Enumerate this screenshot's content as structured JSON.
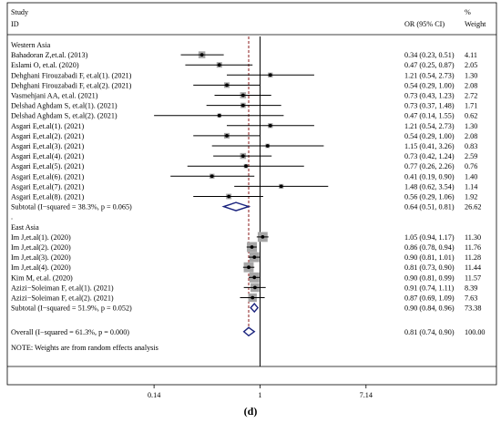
{
  "chart_data": {
    "type": "forest",
    "headers": {
      "study_line1": "Study",
      "study_line2": "ID",
      "or_label": "OR (95% CI)",
      "weight_line1": "%",
      "weight_line2": "Weight"
    },
    "x_scale": "log",
    "xlim": [
      0.12,
      8.2
    ],
    "ticks": [
      {
        "value": 0.14,
        "label": "0.14"
      },
      {
        "value": 1,
        "label": "1"
      },
      {
        "value": 7.14,
        "label": "7.14"
      }
    ],
    "overall_reference": 0.81,
    "groups": [
      {
        "name": "Western Asia",
        "studies": [
          {
            "name": "Bahadoran Z,et.al. (2013)",
            "or": 0.34,
            "lo": 0.23,
            "hi": 0.51,
            "or_text": "0.34 (0.23, 0.51)",
            "weight": "4.11",
            "w": 4.11
          },
          {
            "name": "Eslami O, et.al. (2020)",
            "or": 0.47,
            "lo": 0.25,
            "hi": 0.87,
            "or_text": "0.47 (0.25, 0.87)",
            "weight": "2.05",
            "w": 2.05
          },
          {
            "name": "Dehghani Firouzabadi F, et.al(1). (2021)",
            "or": 1.21,
            "lo": 0.54,
            "hi": 2.73,
            "or_text": "1.21 (0.54, 2.73)",
            "weight": "1.30",
            "w": 1.3
          },
          {
            "name": "Dehghani Firouzabadi F, et.al(2). (2021)",
            "or": 0.54,
            "lo": 0.29,
            "hi": 1.0,
            "or_text": "0.54 (0.29, 1.00)",
            "weight": "2.08",
            "w": 2.08
          },
          {
            "name": "Vasmehjani AA, et.al. (2021)",
            "or": 0.73,
            "lo": 0.43,
            "hi": 1.23,
            "or_text": "0.73 (0.43, 1.23)",
            "weight": "2.72",
            "w": 2.72
          },
          {
            "name": "Delshad Aghdam S, et.al(1). (2021)",
            "or": 0.73,
            "lo": 0.37,
            "hi": 1.48,
            "or_text": "0.73 (0.37, 1.48)",
            "weight": "1.71",
            "w": 1.71
          },
          {
            "name": "Delshad Aghdam S, et.al(2). (2021)",
            "or": 0.47,
            "lo": 0.14,
            "hi": 1.55,
            "or_text": "0.47 (0.14, 1.55)",
            "weight": "0.62",
            "w": 0.62
          },
          {
            "name": "Asgari E,et.al(1). (2021)",
            "or": 1.21,
            "lo": 0.54,
            "hi": 2.73,
            "or_text": "1.21 (0.54, 2.73)",
            "weight": "1.30",
            "w": 1.3
          },
          {
            "name": "Asgari E,et.al(2). (2021)",
            "or": 0.54,
            "lo": 0.29,
            "hi": 1.0,
            "or_text": "0.54 (0.29, 1.00)",
            "weight": "2.08",
            "w": 2.08
          },
          {
            "name": "Asgari E,et.al(3). (2021)",
            "or": 1.15,
            "lo": 0.41,
            "hi": 3.26,
            "or_text": "1.15 (0.41, 3.26)",
            "weight": "0.83",
            "w": 0.83
          },
          {
            "name": "Asgari E,et.al(4). (2021)",
            "or": 0.73,
            "lo": 0.42,
            "hi": 1.24,
            "or_text": "0.73 (0.42, 1.24)",
            "weight": "2.59",
            "w": 2.59
          },
          {
            "name": "Asgari E,et.al(5). (2021)",
            "or": 0.77,
            "lo": 0.26,
            "hi": 2.26,
            "or_text": "0.77 (0.26, 2.26)",
            "weight": "0.76",
            "w": 0.76
          },
          {
            "name": "Asgari E,et.al(6). (2021)",
            "or": 0.41,
            "lo": 0.19,
            "hi": 0.9,
            "or_text": "0.41 (0.19, 0.90)",
            "weight": "1.40",
            "w": 1.4
          },
          {
            "name": "Asgari E,et.al(7). (2021)",
            "or": 1.48,
            "lo": 0.62,
            "hi": 3.54,
            "or_text": "1.48 (0.62, 3.54)",
            "weight": "1.14",
            "w": 1.14
          },
          {
            "name": "Asgari E,et.al(8). (2021)",
            "or": 0.56,
            "lo": 0.29,
            "hi": 1.06,
            "or_text": "0.56 (0.29, 1.06)",
            "weight": "1.92",
            "w": 1.92
          }
        ],
        "subtotal": {
          "label": "Subtotal  (I−squared = 38.3%, p = 0.065)",
          "or": 0.64,
          "lo": 0.51,
          "hi": 0.81,
          "or_text": "0.64 (0.51, 0.81)",
          "weight": "26.62"
        }
      },
      {
        "name": "East Asia",
        "studies": [
          {
            "name": "Im J,et.al(1). (2020)",
            "or": 1.05,
            "lo": 0.94,
            "hi": 1.17,
            "or_text": "1.05 (0.94, 1.17)",
            "weight": "11.30",
            "w": 11.3
          },
          {
            "name": "Im J,et.al(2). (2020)",
            "or": 0.86,
            "lo": 0.78,
            "hi": 0.94,
            "or_text": "0.86 (0.78, 0.94)",
            "weight": "11.76",
            "w": 11.76
          },
          {
            "name": "Im J,et.al(3). (2020)",
            "or": 0.9,
            "lo": 0.81,
            "hi": 1.01,
            "or_text": "0.90 (0.81, 1.01)",
            "weight": "11.28",
            "w": 11.28
          },
          {
            "name": "Im J,et.al(4). (2020)",
            "or": 0.81,
            "lo": 0.73,
            "hi": 0.9,
            "or_text": "0.81 (0.73, 0.90)",
            "weight": "11.44",
            "w": 11.44
          },
          {
            "name": "Kim M, et.al. (2020)",
            "or": 0.9,
            "lo": 0.81,
            "hi": 0.99,
            "or_text": "0.90 (0.81, 0.99)",
            "weight": "11.57",
            "w": 11.57
          },
          {
            "name": "Azizi−Soleiman F, et.al(1). (2021)",
            "or": 0.91,
            "lo": 0.74,
            "hi": 1.11,
            "or_text": "0.91 (0.74, 1.11)",
            "weight": "8.39",
            "w": 8.39
          },
          {
            "name": "Azizi−Soleiman F, et.al(2). (2021)",
            "or": 0.87,
            "lo": 0.69,
            "hi": 1.09,
            "or_text": "0.87 (0.69, 1.09)",
            "weight": "7.63",
            "w": 7.63
          }
        ],
        "subtotal": {
          "label": "Subtotal  (I−squared = 51.9%, p = 0.052)",
          "or": 0.9,
          "lo": 0.84,
          "hi": 0.96,
          "or_text": "0.90 (0.84, 0.96)",
          "weight": "73.38"
        }
      }
    ],
    "separator_mark": ".",
    "overall": {
      "label": "Overall  (I−squared = 61.3%, p = 0.000)",
      "or": 0.81,
      "lo": 0.74,
      "hi": 0.9,
      "or_text": "0.81 (0.74, 0.90)",
      "weight": "100.00"
    },
    "note": "NOTE: Weights are from random effects analysis",
    "colors": {
      "diamond": "#1a237e",
      "reference_line": "#8b1a1a",
      "weight_box": "#a6a6a6"
    }
  },
  "caption": "(d)"
}
